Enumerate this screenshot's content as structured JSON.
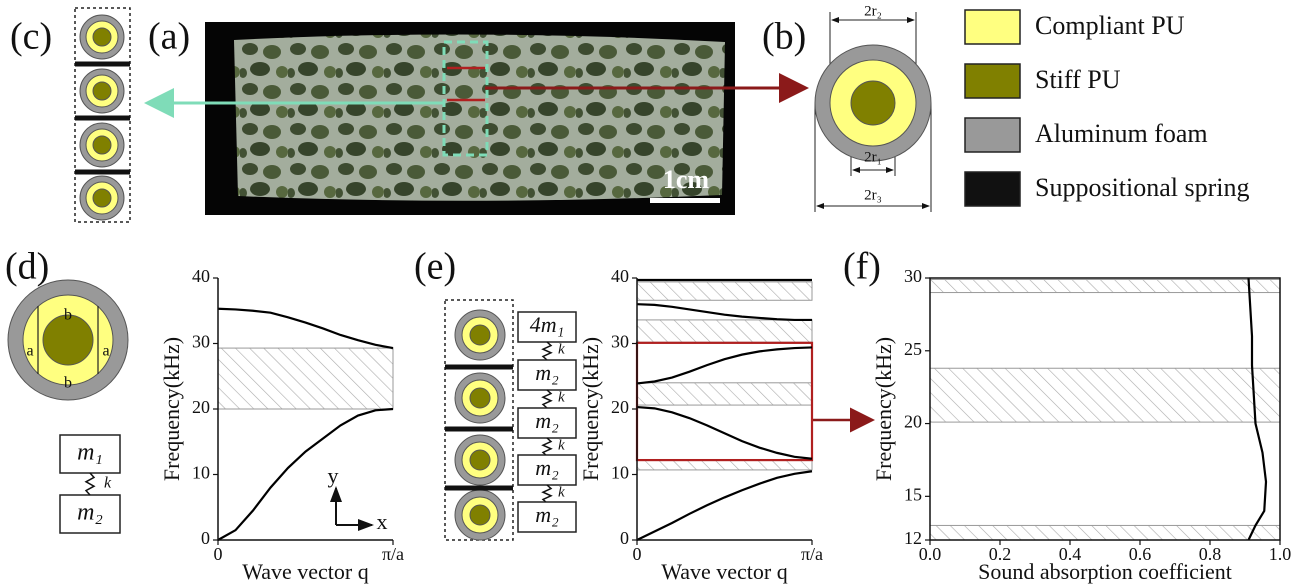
{
  "panel_labels": [
    "(a)",
    "(b)",
    "(c)",
    "(d)",
    "(e)",
    "(f)"
  ],
  "photo": {
    "scale_bar": "1cm"
  },
  "unit_cell": {
    "dimensions": [
      "2r₂",
      "2r₁",
      "2r₃"
    ],
    "region_labels": [
      "a",
      "a",
      "b",
      "b"
    ]
  },
  "legend": [
    {
      "label": "Compliant PU",
      "color": "#ffff80"
    },
    {
      "label": "Stiff PU",
      "color": "#808000"
    },
    {
      "label": "Aluminum foam",
      "color": "#999999"
    },
    {
      "label": "Suppositional spring",
      "color": "#111111"
    }
  ],
  "mass_model": {
    "masses": [
      "m₁",
      "m₂"
    ],
    "spring": "k"
  },
  "chain_model": {
    "masses": [
      "4m₁",
      "m₂",
      "m₂",
      "m₂",
      "m₂"
    ],
    "spring": "k"
  },
  "axis_indicator": [
    "y",
    "x"
  ],
  "chart_data": [
    {
      "type": "line",
      "xlabel": "Wave vector q",
      "ylabel": "Frequency(kHz)",
      "xlim": [
        0,
        1
      ],
      "ylim": [
        0,
        40
      ],
      "xticks": [
        0,
        {
          "value": 1,
          "label": "π/a"
        }
      ],
      "yticks": [
        0,
        10,
        20,
        30,
        40
      ],
      "bandgaps": [
        [
          20,
          29.3
        ]
      ],
      "series": [
        {
          "color": "#000000",
          "x": [
            0,
            0.1,
            0.2,
            0.3,
            0.4,
            0.5,
            0.6,
            0.7,
            0.8,
            0.9,
            1
          ],
          "values": [
            0,
            1.5,
            4.5,
            8,
            11,
            13.5,
            15.5,
            17.5,
            19,
            19.8,
            20
          ]
        },
        {
          "color": "#000000",
          "x": [
            0,
            0.1,
            0.2,
            0.3,
            0.4,
            0.5,
            0.6,
            0.7,
            0.8,
            0.9,
            1
          ],
          "values": [
            35.3,
            35.2,
            35,
            34.7,
            34,
            33.2,
            32.3,
            31.3,
            30.5,
            29.8,
            29.3
          ]
        }
      ]
    },
    {
      "type": "line",
      "xlabel": "Wave vector q",
      "ylabel": "Frequency(kHz)",
      "xlim": [
        0,
        1
      ],
      "ylim": [
        0,
        40
      ],
      "xticks": [
        0,
        {
          "value": 1,
          "label": "π/a"
        }
      ],
      "yticks": [
        0,
        10,
        20,
        30,
        40
      ],
      "bandgaps": [
        [
          10.7,
          12.2
        ],
        [
          20.6,
          24
        ],
        [
          30.2,
          33.6
        ],
        [
          36.6,
          39.4
        ]
      ],
      "highlight": [
        12.2,
        30.1
      ],
      "series": [
        {
          "color": "#000000",
          "x": [
            0,
            0.1,
            0.2,
            0.3,
            0.4,
            0.5,
            0.6,
            0.7,
            0.8,
            0.9,
            1
          ],
          "values": [
            0,
            1.3,
            2.6,
            4,
            5.3,
            6.5,
            7.6,
            8.6,
            9.5,
            10.1,
            10.5
          ]
        },
        {
          "color": "#000000",
          "x": [
            0,
            0.1,
            0.2,
            0.3,
            0.4,
            0.5,
            0.6,
            0.7,
            0.8,
            0.9,
            1
          ],
          "values": [
            20.3,
            20.1,
            19.5,
            18.6,
            17.5,
            16.3,
            15.1,
            14.1,
            13.3,
            12.7,
            12.4
          ]
        },
        {
          "color": "#000000",
          "x": [
            0,
            0.1,
            0.2,
            0.3,
            0.4,
            0.5,
            0.6,
            0.7,
            0.8,
            0.9,
            1
          ],
          "values": [
            23.9,
            24.2,
            24.8,
            25.7,
            26.7,
            27.6,
            28.3,
            28.8,
            29.1,
            29.3,
            29.4
          ]
        },
        {
          "color": "#000000",
          "x": [
            0,
            0.1,
            0.2,
            0.3,
            0.4,
            0.5,
            0.6,
            0.7,
            0.8,
            0.9,
            1
          ],
          "values": [
            36,
            35.9,
            35.6,
            35.2,
            34.8,
            34.4,
            34.1,
            33.9,
            33.7,
            33.6,
            33.6
          ]
        },
        {
          "color": "#000000",
          "x": [
            0,
            0.5,
            1
          ],
          "values": [
            39.7,
            39.7,
            39.7
          ]
        }
      ]
    },
    {
      "type": "line",
      "xlabel": "Sound absorption coefficient",
      "ylabel": "Frequency(kHz)",
      "xlim": [
        0,
        1
      ],
      "ylim": [
        12,
        30
      ],
      "xticks": [
        {
          "value": 0,
          "label": "0.0"
        },
        0.2,
        0.4,
        0.6,
        0.8,
        {
          "value": 1,
          "label": "1.0"
        }
      ],
      "yticks": [
        12,
        15,
        20,
        25,
        30
      ],
      "frame": true,
      "bandgaps": [
        [
          29,
          29.9
        ],
        [
          20.1,
          23.8
        ],
        [
          12,
          13
        ]
      ],
      "series": [
        {
          "color": "#000000",
          "x": [
            0.91,
            0.915,
            0.92,
            0.92,
            0.925,
            0.93,
            0.95,
            0.96,
            0.955,
            0.93,
            0.91
          ],
          "values": [
            30,
            28,
            26,
            24,
            22,
            20,
            18,
            16,
            14,
            13,
            12
          ]
        }
      ]
    }
  ]
}
